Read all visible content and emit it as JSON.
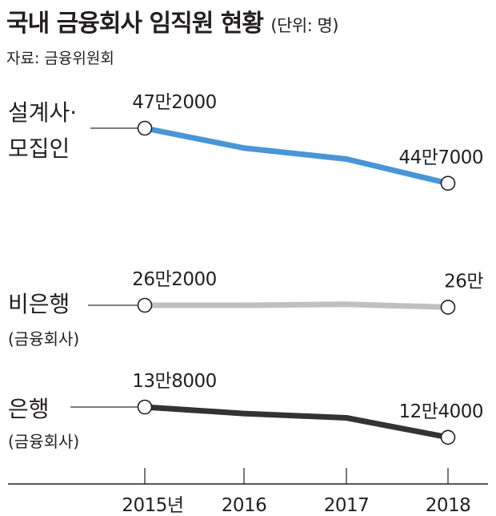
{
  "header": {
    "title": "국내 금융회사 임직원 현황",
    "unit": "(단위: 명)",
    "source": "자료: 금융위원회"
  },
  "chart_data": {
    "type": "line",
    "x": [
      "2015년",
      "2016",
      "2017",
      "2018"
    ],
    "unit": "명",
    "series": [
      {
        "id": "agents",
        "label_lines": [
          "설계사·",
          "모집인"
        ],
        "sub_label": "",
        "color": "#4a95d6",
        "values": [
          472000,
          463000,
          458000,
          447000
        ],
        "start_label": "47만2000",
        "end_label": "44만7000"
      },
      {
        "id": "nonbank",
        "label_lines": [
          "비은행"
        ],
        "sub_label": "(금융회사)",
        "color": "#c0c0c0",
        "values": [
          262000,
          262000,
          263000,
          260000
        ],
        "start_label": "26만2000",
        "end_label": "26만"
      },
      {
        "id": "bank",
        "label_lines": [
          "은행"
        ],
        "sub_label": "(금융회사)",
        "color": "#333333",
        "values": [
          138000,
          135000,
          133000,
          124000
        ],
        "start_label": "13만8000",
        "end_label": "12만4000"
      }
    ],
    "xlabel": "",
    "ylabel": "",
    "grid": false,
    "axis_break": "series drawn on separate vertical bands"
  }
}
